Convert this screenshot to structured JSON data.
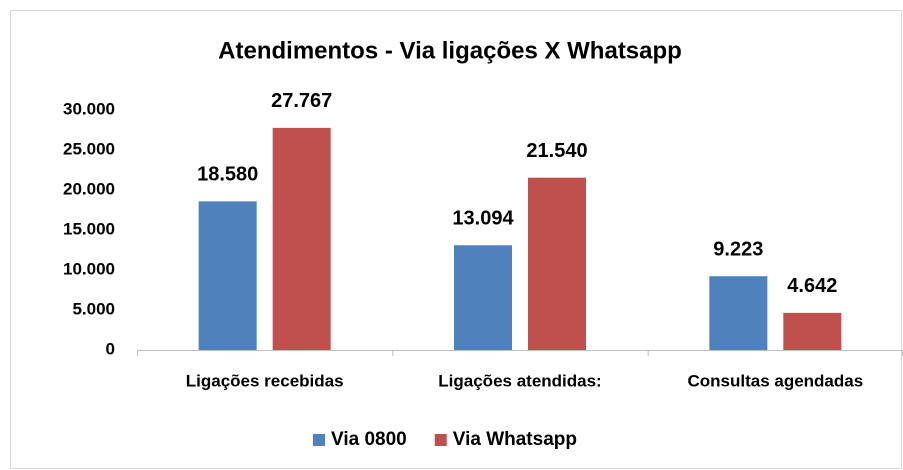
{
  "chart_data": {
    "type": "bar",
    "title": "Atendimentos - Via ligações X Whatsapp",
    "categories": [
      "Ligações recebidas",
      "Ligações atendidas:",
      "Consultas agendadas"
    ],
    "series": [
      {
        "name": "Via 0800",
        "color": "#4f81bd",
        "values": [
          18580,
          13094,
          9223
        ],
        "value_labels": [
          "18.580",
          "13.094",
          "9.223"
        ]
      },
      {
        "name": "Via Whatsapp",
        "color": "#c0504d",
        "values": [
          27767,
          21540,
          4642
        ],
        "value_labels": [
          "27.767",
          "21.540",
          "4.642"
        ]
      }
    ],
    "ylim": [
      0,
      30000
    ],
    "yticks": [
      0,
      {
        "value": 5000,
        "label": "5.000"
      },
      {
        "value": 10000,
        "label": "10.000"
      },
      {
        "value": 15000,
        "label": "15.000"
      },
      {
        "value": 20000,
        "label": "20.000"
      },
      {
        "value": 25000,
        "label": "25.000"
      },
      {
        "value": 30000,
        "label": "30.000"
      }
    ],
    "legend": "bottom"
  }
}
